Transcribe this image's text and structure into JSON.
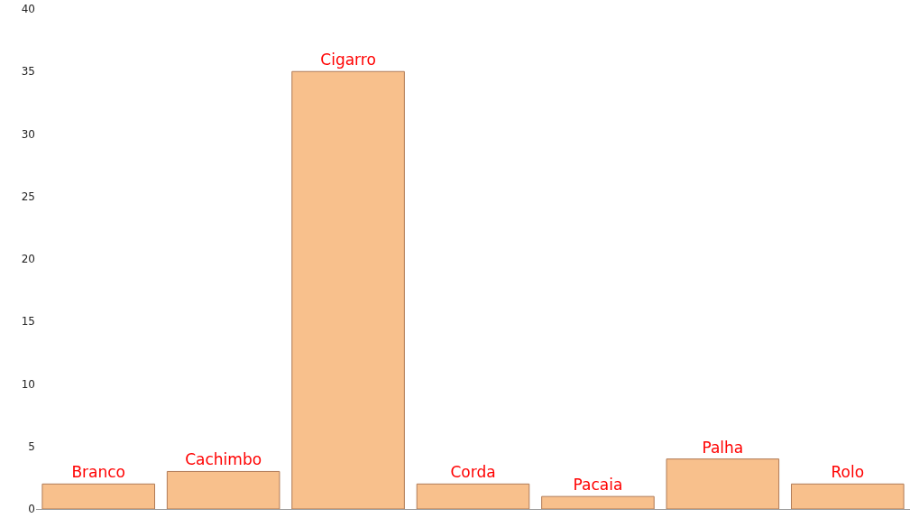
{
  "chart_data": {
    "type": "bar",
    "categories": [
      "Branco",
      "Cachimbo",
      "Cigarro",
      "Corda",
      "Pacaia",
      "Palha",
      "Rolo"
    ],
    "values": [
      2,
      3,
      35,
      2,
      1,
      4,
      2
    ],
    "color": "#f8c08c",
    "ylim": [
      0,
      40
    ],
    "yticks": [
      0,
      5,
      10,
      15,
      20,
      25,
      30,
      35,
      40
    ],
    "grid": false,
    "tick_labels": "y"
  }
}
